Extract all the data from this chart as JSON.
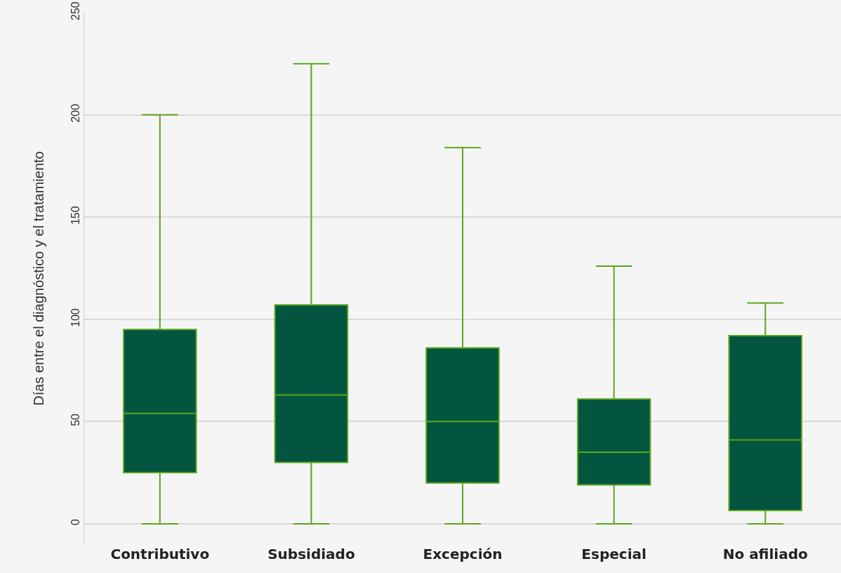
{
  "chart_data": {
    "type": "box",
    "ylabel": "Días entre el diagnóstico y el tratamiento",
    "categories": [
      "Contributivo",
      "Subsidiado",
      "Excepción",
      "Especial",
      "No afiliado"
    ],
    "boxes": [
      {
        "low": 0,
        "q1": 25,
        "median": 54,
        "q3": 95,
        "high": 200
      },
      {
        "low": 0,
        "q1": 30,
        "median": 63,
        "q3": 107,
        "high": 225
      },
      {
        "low": 0,
        "q1": 20,
        "median": 50,
        "q3": 86,
        "high": 184
      },
      {
        "low": 0,
        "q1": 19,
        "median": 35,
        "q3": 61,
        "high": 126
      },
      {
        "low": 0,
        "q1": 6.5,
        "median": 41,
        "q3": 92,
        "high": 108
      }
    ],
    "color": "#03553f",
    "ylim": [
      -10,
      250
    ],
    "yticks": [
      0,
      50,
      100,
      150,
      200,
      250
    ],
    "grid": "y",
    "legend": false
  }
}
